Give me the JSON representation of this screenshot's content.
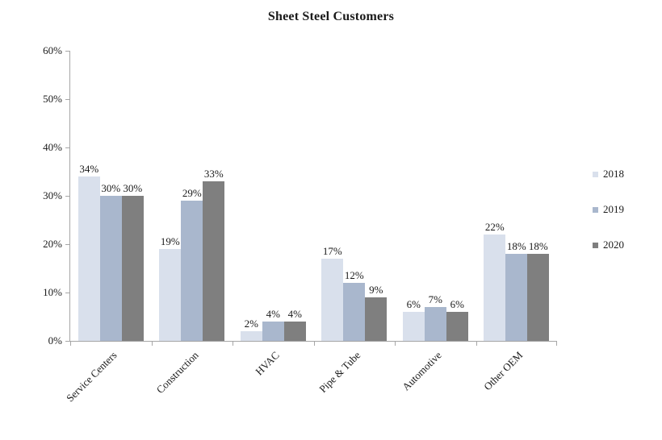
{
  "title": "Sheet Steel Customers",
  "chart_data": {
    "type": "bar",
    "title": "Sheet Steel Customers",
    "categories": [
      "Service Centers",
      "Construction",
      "HVAC",
      "Pipe & Tube",
      "Automotive",
      "Other OEM"
    ],
    "series": [
      {
        "name": "2018",
        "color": "#d9e0ec",
        "values": [
          34,
          19,
          2,
          17,
          6,
          22
        ]
      },
      {
        "name": "2019",
        "color": "#a9b7cd",
        "values": [
          30,
          29,
          4,
          12,
          7,
          18
        ]
      },
      {
        "name": "2020",
        "color": "#7f7f7f",
        "values": [
          30,
          33,
          4,
          9,
          6,
          18
        ]
      }
    ],
    "ylim": [
      0,
      60
    ],
    "ytick_labels": [
      "0%",
      "10%",
      "20%",
      "30%",
      "40%",
      "50%",
      "60%"
    ],
    "data_label_format": "{v}%",
    "legend_position": "right",
    "grid": false,
    "axis_color": "#a6a6a6",
    "text_color": "#1a1a1a"
  }
}
